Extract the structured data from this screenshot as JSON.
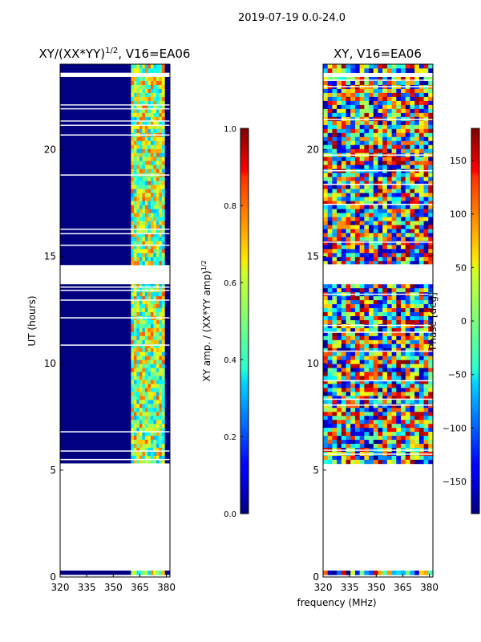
{
  "figure_title": "2019-07-19 0.0-24.0",
  "shared_xlabel": "frequency (MHz)",
  "chart_data": [
    {
      "type": "heatmap",
      "title_main": "XY/(XX*YY)",
      "title_sup": "1/2",
      "title_tail": ", V16=EA06",
      "xlabel": "",
      "ylabel": "UT (hours)",
      "xlim": [
        320,
        382
      ],
      "ylim": [
        0,
        24
      ],
      "xticks": [
        320,
        335,
        350,
        365,
        380
      ],
      "yticks": [
        0,
        5,
        10,
        15,
        20
      ],
      "colorbar": {
        "label_main": "XY amp. / (XX*YY amp)",
        "label_sup": "1/2",
        "range": [
          0.0,
          1.0
        ],
        "ticks": [
          "0.0",
          "0.2",
          "0.4",
          "0.6",
          "0.8",
          "1.0"
        ],
        "colormap": "jet"
      },
      "background_value": 0.0,
      "active_band_mhz": [
        360,
        379
      ],
      "active_band_level": 0.55,
      "data_segments_ut": [
        [
          0.1,
          0.3
        ],
        [
          5.3,
          13.7
        ],
        [
          14.6,
          23.4
        ],
        [
          23.6,
          24.0
        ]
      ]
    },
    {
      "type": "heatmap",
      "title_main": "XY, V16=EA06",
      "title_sup": "",
      "title_tail": "",
      "xlabel": "",
      "ylabel": "",
      "xlim": [
        320,
        382
      ],
      "ylim": [
        0,
        24
      ],
      "xticks": [
        320,
        335,
        350,
        365,
        380
      ],
      "yticks": [
        0,
        5,
        10,
        15,
        20
      ],
      "colorbar": {
        "label_main": "Phase [deg]",
        "label_sup": "",
        "range": [
          -180,
          180
        ],
        "ticks": [
          "−150",
          "−100",
          "−50",
          "0",
          "50",
          "100",
          "150"
        ],
        "colormap": "jet"
      },
      "value_distribution": "random phase, -180 to 180 deg",
      "data_segments_ut": [
        [
          0.1,
          0.3
        ],
        [
          5.3,
          13.7
        ],
        [
          14.6,
          23.4
        ],
        [
          23.6,
          24.0
        ]
      ]
    }
  ]
}
